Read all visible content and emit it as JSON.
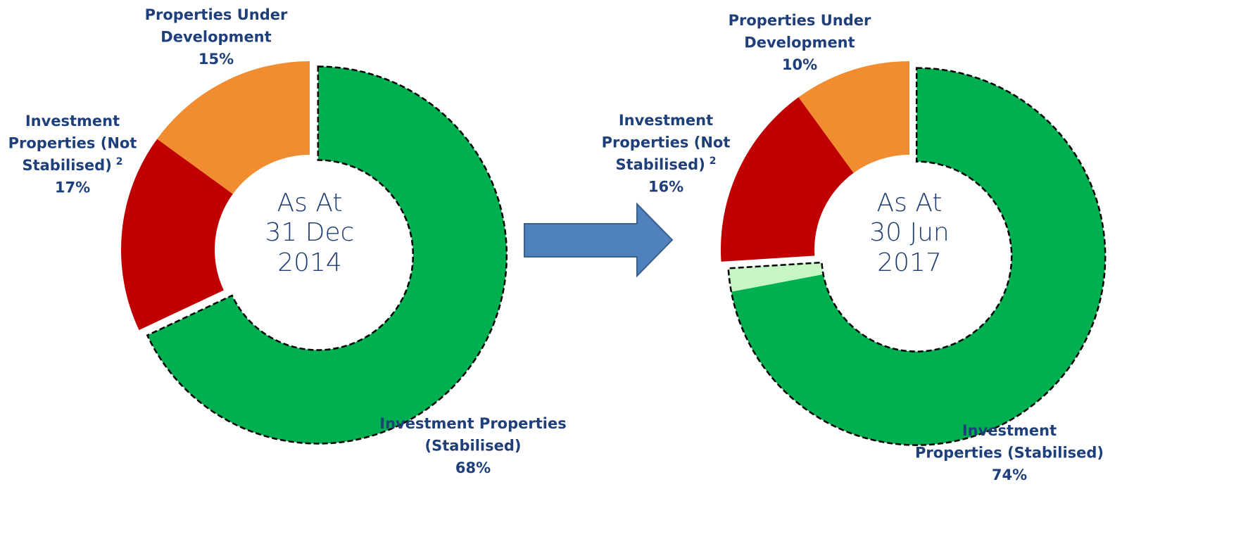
{
  "chart_data": [
    {
      "type": "donut",
      "center_lines": [
        "As At",
        "31 Dec",
        "2014"
      ],
      "labels": [
        [
          "Investment Properties",
          "(Stabilised)"
        ],
        [
          "Investment",
          "Properties (Not",
          "Stabilised)"
        ],
        [
          "Properties Under",
          "Development"
        ]
      ],
      "notes": [
        null,
        "2",
        null
      ],
      "values": [
        68,
        17,
        15
      ],
      "value_labels": [
        "68%",
        "17%",
        "15%"
      ],
      "colors": [
        "#00b050",
        "#c00000",
        "#f28c30"
      ]
    },
    {
      "type": "donut",
      "center_lines": [
        "As At",
        "30 Jun",
        "2017"
      ],
      "labels": [
        [
          "Investment",
          "Properties (Stabilised)"
        ],
        [
          "Investment",
          "Properties (Not",
          "Stabilised)"
        ],
        [
          "Properties Under",
          "Development"
        ]
      ],
      "notes": [
        null,
        "2",
        null
      ],
      "values": [
        74,
        16,
        10
      ],
      "value_labels": [
        "74%",
        "16%",
        "10%"
      ],
      "colors": [
        "#00b050",
        "#c00000",
        "#f28c30"
      ],
      "highlight": {
        "value": 2,
        "color": "#c6f5c6"
      }
    }
  ]
}
